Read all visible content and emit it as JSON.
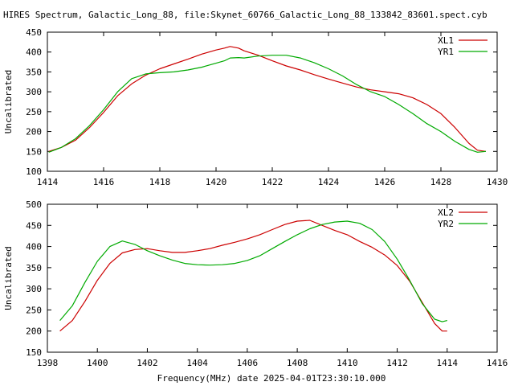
{
  "title": "HIRES Spectrum, Galactic_Long_88, file:Skynet_60766_Galactic_Long_88_133842_83601.spect.cyb",
  "bottom_xlabel": "Frequency(MHz) date 2025-04-01T23:30:10.000",
  "colors": {
    "red": "#cc0000",
    "green": "#00aa00"
  },
  "chart_data": [
    {
      "type": "line",
      "xlim": [
        1414,
        1430
      ],
      "ylim": [
        100,
        450
      ],
      "xticks": [
        1414,
        1416,
        1418,
        1420,
        1422,
        1424,
        1426,
        1428,
        1430
      ],
      "yticks": [
        100,
        150,
        200,
        250,
        300,
        350,
        400,
        450
      ],
      "ylabel": "Uncalibrated",
      "xlabel": "",
      "legend_position": "top-right",
      "grid": false,
      "series": [
        {
          "name": "XL1",
          "color": "red",
          "points": [
            [
              1414.05,
              150
            ],
            [
              1414.5,
              160
            ],
            [
              1415,
              178
            ],
            [
              1415.5,
              210
            ],
            [
              1416,
              248
            ],
            [
              1416.5,
              290
            ],
            [
              1417,
              320
            ],
            [
              1417.5,
              342
            ],
            [
              1418,
              358
            ],
            [
              1418.5,
              370
            ],
            [
              1419,
              382
            ],
            [
              1419.5,
              395
            ],
            [
              1420,
              405
            ],
            [
              1420.3,
              410
            ],
            [
              1420.5,
              414
            ],
            [
              1420.8,
              410
            ],
            [
              1421,
              403
            ],
            [
              1421.5,
              392
            ],
            [
              1422,
              378
            ],
            [
              1422.5,
              365
            ],
            [
              1423,
              355
            ],
            [
              1423.5,
              343
            ],
            [
              1424,
              332
            ],
            [
              1424.5,
              322
            ],
            [
              1425,
              312
            ],
            [
              1425.5,
              305
            ],
            [
              1426,
              300
            ],
            [
              1426.5,
              295
            ],
            [
              1427,
              285
            ],
            [
              1427.5,
              268
            ],
            [
              1428,
              245
            ],
            [
              1428.5,
              210
            ],
            [
              1429,
              170
            ],
            [
              1429.3,
              153
            ],
            [
              1429.6,
              150
            ]
          ]
        },
        {
          "name": "YR1",
          "color": "green",
          "points": [
            [
              1414.05,
              148
            ],
            [
              1414.5,
              160
            ],
            [
              1415,
              182
            ],
            [
              1415.5,
              215
            ],
            [
              1416,
              255
            ],
            [
              1416.5,
              300
            ],
            [
              1417,
              333
            ],
            [
              1417.5,
              345
            ],
            [
              1418,
              348
            ],
            [
              1418.5,
              350
            ],
            [
              1419,
              355
            ],
            [
              1419.5,
              362
            ],
            [
              1420,
              372
            ],
            [
              1420.3,
              378
            ],
            [
              1420.5,
              385
            ],
            [
              1420.8,
              386
            ],
            [
              1421,
              385
            ],
            [
              1421.5,
              390
            ],
            [
              1422,
              392
            ],
            [
              1422.5,
              392
            ],
            [
              1423,
              385
            ],
            [
              1423.5,
              373
            ],
            [
              1424,
              358
            ],
            [
              1424.5,
              340
            ],
            [
              1425,
              318
            ],
            [
              1425.5,
              300
            ],
            [
              1426,
              288
            ],
            [
              1426.5,
              268
            ],
            [
              1427,
              245
            ],
            [
              1427.5,
              220
            ],
            [
              1428,
              200
            ],
            [
              1428.5,
              175
            ],
            [
              1429,
              155
            ],
            [
              1429.3,
              148
            ],
            [
              1429.6,
              150
            ]
          ]
        }
      ]
    },
    {
      "type": "line",
      "xlim": [
        1398,
        1416
      ],
      "ylim": [
        150,
        500
      ],
      "xticks": [
        1398,
        1400,
        1402,
        1404,
        1406,
        1408,
        1410,
        1412,
        1414,
        1416
      ],
      "yticks": [
        150,
        200,
        250,
        300,
        350,
        400,
        450,
        500
      ],
      "ylabel": "Uncalibrated",
      "xlabel": "Frequency(MHz) date 2025-04-01T23:30:10.000",
      "legend_position": "top-right",
      "grid": false,
      "series": [
        {
          "name": "XL2",
          "color": "red",
          "points": [
            [
              1398.5,
              200
            ],
            [
              1399,
              225
            ],
            [
              1399.5,
              270
            ],
            [
              1400,
              320
            ],
            [
              1400.5,
              360
            ],
            [
              1401,
              385
            ],
            [
              1401.5,
              393
            ],
            [
              1402,
              395
            ],
            [
              1402.5,
              390
            ],
            [
              1403,
              386
            ],
            [
              1403.5,
              386
            ],
            [
              1404,
              390
            ],
            [
              1404.5,
              395
            ],
            [
              1405,
              403
            ],
            [
              1405.5,
              410
            ],
            [
              1406,
              418
            ],
            [
              1406.5,
              428
            ],
            [
              1407,
              440
            ],
            [
              1407.5,
              452
            ],
            [
              1408,
              460
            ],
            [
              1408.5,
              462
            ],
            [
              1409,
              450
            ],
            [
              1409.5,
              438
            ],
            [
              1410,
              428
            ],
            [
              1410.5,
              412
            ],
            [
              1411,
              398
            ],
            [
              1411.5,
              380
            ],
            [
              1412,
              355
            ],
            [
              1412.5,
              318
            ],
            [
              1413,
              268
            ],
            [
              1413.5,
              218
            ],
            [
              1413.8,
              200
            ],
            [
              1414,
              200
            ]
          ]
        },
        {
          "name": "YR2",
          "color": "green",
          "points": [
            [
              1398.5,
              225
            ],
            [
              1399,
              260
            ],
            [
              1399.5,
              315
            ],
            [
              1400,
              365
            ],
            [
              1400.5,
              400
            ],
            [
              1401,
              413
            ],
            [
              1401.5,
              405
            ],
            [
              1402,
              390
            ],
            [
              1402.5,
              378
            ],
            [
              1403,
              368
            ],
            [
              1403.5,
              360
            ],
            [
              1404,
              357
            ],
            [
              1404.5,
              356
            ],
            [
              1405,
              357
            ],
            [
              1405.5,
              360
            ],
            [
              1406,
              367
            ],
            [
              1406.5,
              378
            ],
            [
              1407,
              395
            ],
            [
              1407.5,
              412
            ],
            [
              1408,
              428
            ],
            [
              1408.5,
              442
            ],
            [
              1409,
              452
            ],
            [
              1409.5,
              458
            ],
            [
              1410,
              460
            ],
            [
              1410.5,
              455
            ],
            [
              1411,
              440
            ],
            [
              1411.5,
              412
            ],
            [
              1412,
              370
            ],
            [
              1412.5,
              320
            ],
            [
              1413,
              265
            ],
            [
              1413.5,
              228
            ],
            [
              1413.8,
              222
            ],
            [
              1414,
              225
            ]
          ]
        }
      ]
    }
  ]
}
